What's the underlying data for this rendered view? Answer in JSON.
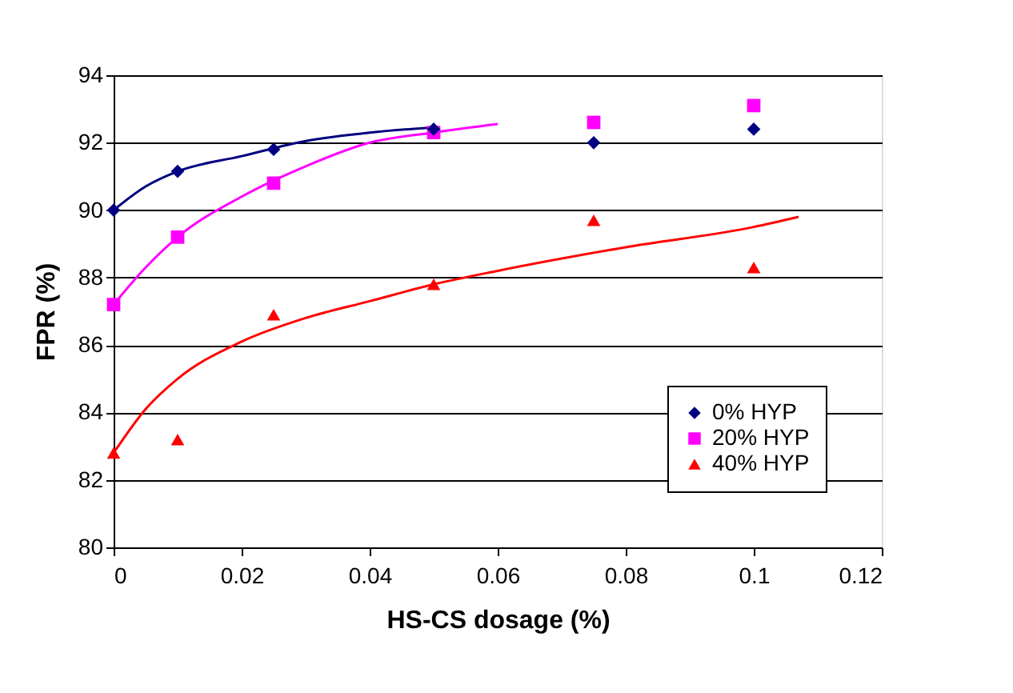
{
  "chart_data": {
    "type": "scatter",
    "xlabel": "HS-CS dosage (%)",
    "ylabel": "FPR (%)",
    "xlim": [
      0,
      0.12
    ],
    "xticks": [
      0,
      0.02,
      0.04,
      0.06,
      0.08,
      0.1,
      0.12
    ],
    "ylim": [
      80,
      94
    ],
    "yticks": [
      80,
      82,
      84,
      86,
      88,
      90,
      92,
      94
    ],
    "grid": "y",
    "legend": "bottom right",
    "series": [
      {
        "name": "0% HYP",
        "marker": "diamond",
        "color": "#000080",
        "x": [
          0,
          0.01,
          0.025,
          0.05,
          0.075,
          0.1
        ],
        "values": [
          90.0,
          91.15,
          91.8,
          92.4,
          92.0,
          92.4
        ]
      },
      {
        "name": "20% HYP",
        "marker": "square",
        "color": "#ff00ff",
        "x": [
          0,
          0.01,
          0.025,
          0.05,
          0.075,
          0.1
        ],
        "values": [
          87.2,
          89.2,
          90.8,
          92.3,
          92.6,
          93.1
        ]
      },
      {
        "name": "40% HYP",
        "marker": "triangle",
        "color": "#ff0000",
        "x": [
          0,
          0.01,
          0.025,
          0.05,
          0.075,
          0.1
        ],
        "values": [
          82.8,
          83.2,
          86.9,
          87.8,
          89.7,
          88.3
        ]
      },
      {
        "type": "line",
        "line_style": "solid",
        "color": "#000080",
        "x": [
          0,
          0.005,
          0.01,
          0.02,
          0.03,
          0.04,
          0.05
        ],
        "values": [
          90.0,
          90.7,
          91.15,
          91.6,
          92.05,
          92.3,
          92.45
        ]
      },
      {
        "type": "line",
        "line_style": "solid",
        "color": "#ff00ff",
        "x": [
          0,
          0.005,
          0.01,
          0.02,
          0.03,
          0.04,
          0.05,
          0.06
        ],
        "values": [
          87.2,
          88.3,
          89.2,
          90.4,
          91.3,
          92.0,
          92.3,
          92.55
        ]
      },
      {
        "type": "line",
        "line_style": "solid",
        "color": "#ff0000",
        "x": [
          0,
          0.005,
          0.01,
          0.02,
          0.03,
          0.04,
          0.05,
          0.06,
          0.08,
          0.1,
          0.107
        ],
        "values": [
          82.8,
          84.1,
          85.0,
          86.1,
          86.8,
          87.3,
          87.8,
          88.2,
          88.9,
          89.5,
          89.8
        ]
      }
    ]
  }
}
